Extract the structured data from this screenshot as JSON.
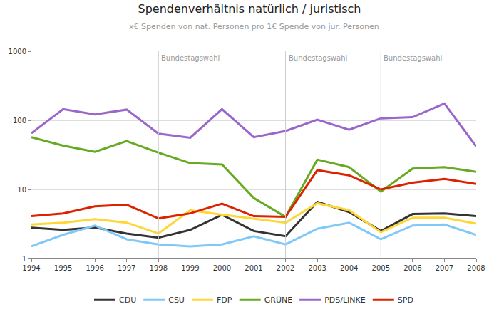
{
  "chart_data": {
    "type": "line",
    "title": "Spendenverhältnis natürlich / juristisch",
    "subtitle": "x€ Spenden von nat. Personen pro 1€ Spende von jur. Personen",
    "x": [
      1994,
      1995,
      1996,
      1997,
      1998,
      1999,
      2000,
      2001,
      2002,
      2003,
      2004,
      2005,
      2006,
      2007,
      2008
    ],
    "series": [
      {
        "name": "CDU",
        "color": "#333333",
        "values": [
          2.8,
          2.6,
          2.8,
          2.3,
          2.0,
          2.6,
          4.3,
          2.5,
          2.1,
          6.6,
          4.7,
          2.5,
          4.4,
          4.5,
          4.1
        ]
      },
      {
        "name": "CSU",
        "color": "#80c8f8",
        "values": [
          1.5,
          2.2,
          3.0,
          1.9,
          1.6,
          1.5,
          1.6,
          2.1,
          1.6,
          2.7,
          3.3,
          1.9,
          3.0,
          3.1,
          2.2
        ]
      },
      {
        "name": "FDP",
        "color": "#ffd633",
        "values": [
          3.1,
          3.3,
          3.7,
          3.3,
          2.3,
          5.0,
          4.3,
          3.8,
          3.3,
          6.3,
          5.0,
          2.4,
          3.9,
          3.9,
          3.2
        ]
      },
      {
        "name": "GRÜNE",
        "color": "#66aa22",
        "values": [
          57,
          43,
          35,
          50,
          34,
          24,
          23,
          7.5,
          4.0,
          27,
          21,
          9.3,
          20,
          21,
          18
        ]
      },
      {
        "name": "PDS/LINKE",
        "color": "#9966cc",
        "values": [
          65,
          145,
          122,
          143,
          64,
          56,
          145,
          57,
          70,
          102,
          73,
          107,
          111,
          175,
          42
        ]
      },
      {
        "name": "SPD",
        "color": "#dd2200",
        "values": [
          4.1,
          4.5,
          5.7,
          6.0,
          3.8,
          4.5,
          6.2,
          4.1,
          4.0,
          19,
          16,
          10,
          12.5,
          14.2,
          12
        ]
      }
    ],
    "xlim": [
      1994,
      2008
    ],
    "xticks": [
      1994,
      1995,
      1996,
      1997,
      1998,
      1999,
      2000,
      2001,
      2002,
      2003,
      2004,
      2005,
      2006,
      2007,
      2008
    ],
    "ylim": [
      1,
      1000
    ],
    "yticks": [
      1,
      10,
      100,
      1000
    ],
    "log": "y",
    "grid": true,
    "legend": "bottom",
    "annotations": [
      {
        "x": 1998,
        "text": "Bundestagswahl"
      },
      {
        "x": 2002,
        "text": "Bundestagswahl"
      },
      {
        "x": 2005,
        "text": "Bundestagswahl"
      }
    ]
  }
}
